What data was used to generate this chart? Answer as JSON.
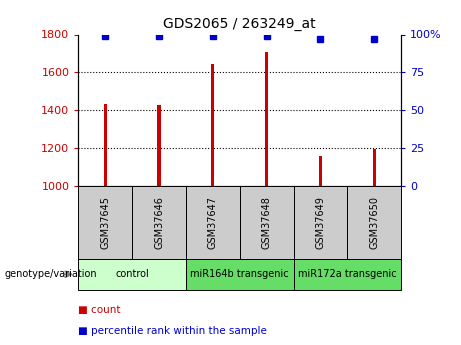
{
  "title": "GDS2065 / 263249_at",
  "samples": [
    "GSM37645",
    "GSM37646",
    "GSM37647",
    "GSM37648",
    "GSM37649",
    "GSM37650"
  ],
  "counts": [
    1435,
    1430,
    1645,
    1710,
    1160,
    1195
  ],
  "percentile_ranks": [
    99,
    99,
    99,
    99,
    97,
    97
  ],
  "ylim_left": [
    1000,
    1800
  ],
  "ylim_right": [
    0,
    100
  ],
  "yticks_left": [
    1000,
    1200,
    1400,
    1600,
    1800
  ],
  "yticks_right": [
    0,
    25,
    50,
    75,
    100
  ],
  "ytick_labels_right": [
    "0",
    "25",
    "50",
    "75",
    "100%"
  ],
  "bar_color": "#cc0000",
  "dot_color": "#0000cc",
  "group_spans": [
    {
      "start": 0,
      "end": 1,
      "label": "control",
      "color": "#ccffcc"
    },
    {
      "start": 2,
      "end": 3,
      "label": "miR164b transgenic",
      "color": "#66dd66"
    },
    {
      "start": 4,
      "end": 5,
      "label": "miR172a transgenic",
      "color": "#66dd66"
    }
  ],
  "sample_box_color": "#cccccc",
  "left_tick_color": "#cc0000",
  "right_tick_color": "#0000cc",
  "legend_count_color": "#cc0000",
  "legend_pct_color": "#0000cc",
  "genotype_label": "genotype/variation",
  "legend_count_label": "count",
  "legend_pct_label": "percentile rank within the sample",
  "figsize": [
    4.61,
    3.45
  ],
  "dpi": 100
}
